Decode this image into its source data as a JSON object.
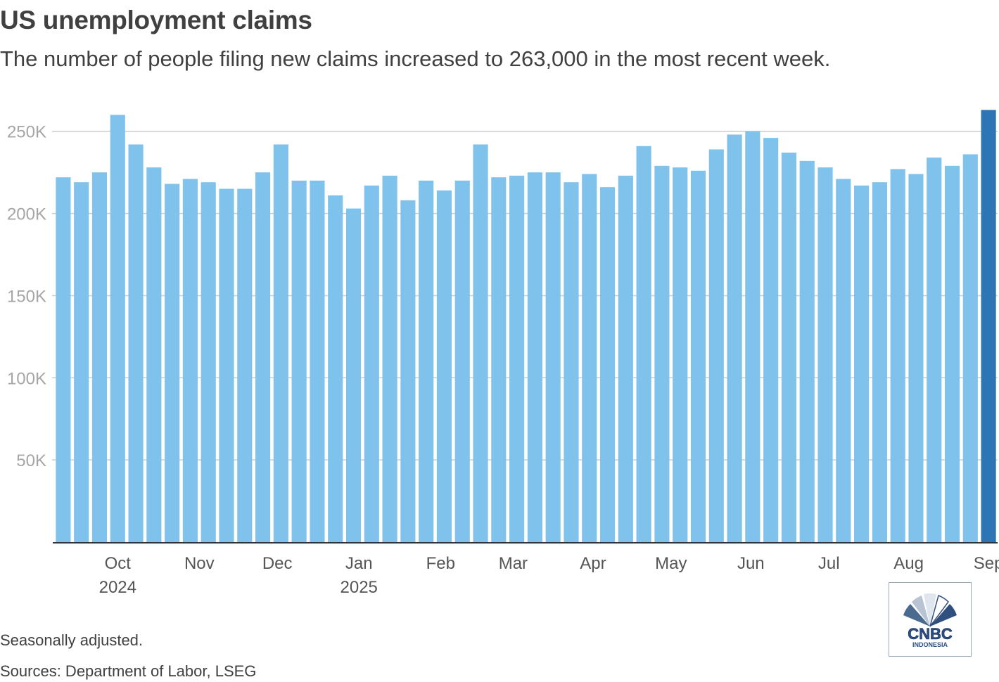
{
  "header": {
    "title": "US unemployment claims",
    "subtitle": "The number of people filing new claims increased to 263,000 in the most recent week."
  },
  "footer": {
    "note": "Seasonally adjusted.",
    "source": "Sources: Department of Labor, LSEG"
  },
  "logo": {
    "text": "CNBC",
    "subtext": "INDONESIA"
  },
  "colors": {
    "bar": "#7fc3ed",
    "highlight": "#2e75b6",
    "grid": "#cccccc",
    "axis": "#333333"
  },
  "chart_data": {
    "type": "bar",
    "title": "US unemployment claims",
    "xlabel": "",
    "ylabel": "",
    "ylim": [
      0,
      270000
    ],
    "y_ticks": [
      {
        "value": 50000,
        "label": "50K"
      },
      {
        "value": 100000,
        "label": "100K"
      },
      {
        "value": 150000,
        "label": "150K"
      },
      {
        "value": 200000,
        "label": "200K"
      },
      {
        "value": 250000,
        "label": "250K"
      }
    ],
    "x_ticks": [
      {
        "index": 3,
        "label": "Oct",
        "sublabel": "2024"
      },
      {
        "index": 7.5,
        "label": "Nov"
      },
      {
        "index": 11.8,
        "label": "Dec"
      },
      {
        "index": 16.3,
        "label": "Jan",
        "sublabel": "2025"
      },
      {
        "index": 20.8,
        "label": "Feb"
      },
      {
        "index": 24.8,
        "label": "Mar"
      },
      {
        "index": 29.2,
        "label": "Apr"
      },
      {
        "index": 33.5,
        "label": "May"
      },
      {
        "index": 37.9,
        "label": "Jun"
      },
      {
        "index": 42.2,
        "label": "Jul"
      },
      {
        "index": 46.6,
        "label": "Aug"
      },
      {
        "index": 51,
        "label": "Sep"
      }
    ],
    "grid": true,
    "highlight_last": true,
    "values": [
      222000,
      219000,
      225000,
      260000,
      242000,
      228000,
      218000,
      221000,
      219000,
      215000,
      215000,
      225000,
      242000,
      220000,
      220000,
      211000,
      203000,
      217000,
      223000,
      208000,
      220000,
      214000,
      220000,
      242000,
      222000,
      223000,
      225000,
      225000,
      219000,
      224000,
      216000,
      223000,
      241000,
      229000,
      228000,
      226000,
      239000,
      248000,
      250000,
      246000,
      237000,
      232000,
      228000,
      221000,
      217000,
      219000,
      227000,
      224000,
      234000,
      229000,
      236000,
      263000
    ]
  }
}
